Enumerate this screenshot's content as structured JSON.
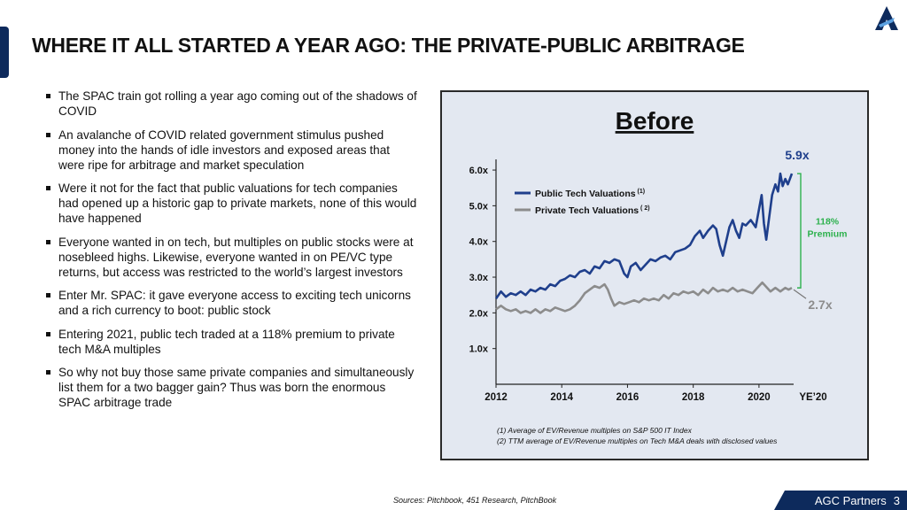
{
  "title": "WHERE IT ALL STARTED A YEAR AGO: THE PRIVATE-PUBLIC ARBITRAGE",
  "bullets": [
    "The SPAC train got rolling a year ago coming out of the shadows of COVID",
    "An avalanche of COVID related government stimulus pushed money into the hands of idle investors and exposed areas that were ripe for arbitrage and market speculation",
    " Were it not for the fact that public valuations for tech companies had opened up a historic gap to private markets, none of this would have happened",
    "Everyone wanted in on tech, but multiples on public stocks were at nosebleed highs. Likewise, everyone wanted in on PE/VC type returns, but access was restricted to the world’s largest investors",
    "Enter Mr. SPAC: it gave everyone access to exciting tech unicorns and a rich currency to boot: public stock",
    "Entering 2021, public tech traded at a 118% premium to private tech M&A multiples",
    "So why not buy those same private companies and simultaneously list them for a two bagger gain? Thus was born the enormous SPAC arbitrage trade"
  ],
  "chart_data": {
    "type": "line",
    "title": "Before",
    "y_tick_labels": [
      "1.0x",
      "2.0x",
      "3.0x",
      "4.0x",
      "5.0x",
      "6.0x"
    ],
    "y_ticks": [
      1,
      2,
      3,
      4,
      5,
      6
    ],
    "x_tick_labels": [
      "2012",
      "2014",
      "2016",
      "2018",
      "2020",
      "YE’20"
    ],
    "x_ticks": [
      2012,
      2014,
      2016,
      2018,
      2020,
      2021
    ],
    "xlim": [
      2012,
      2021
    ],
    "ylim": [
      0,
      6.2
    ],
    "series": [
      {
        "name": "Public Tech Valuations",
        "superscript": "(1)",
        "color": "#1f3f8c",
        "end_label": "5.9x",
        "points": [
          [
            2012.0,
            2.4
          ],
          [
            2012.15,
            2.6
          ],
          [
            2012.3,
            2.45
          ],
          [
            2012.45,
            2.55
          ],
          [
            2012.6,
            2.5
          ],
          [
            2012.75,
            2.6
          ],
          [
            2012.9,
            2.5
          ],
          [
            2013.05,
            2.65
          ],
          [
            2013.2,
            2.6
          ],
          [
            2013.35,
            2.7
          ],
          [
            2013.5,
            2.65
          ],
          [
            2013.65,
            2.8
          ],
          [
            2013.8,
            2.75
          ],
          [
            2013.95,
            2.9
          ],
          [
            2014.1,
            2.95
          ],
          [
            2014.25,
            3.05
          ],
          [
            2014.4,
            3.0
          ],
          [
            2014.55,
            3.15
          ],
          [
            2014.7,
            3.2
          ],
          [
            2014.85,
            3.1
          ],
          [
            2015.0,
            3.3
          ],
          [
            2015.15,
            3.25
          ],
          [
            2015.3,
            3.45
          ],
          [
            2015.45,
            3.4
          ],
          [
            2015.6,
            3.5
          ],
          [
            2015.75,
            3.45
          ],
          [
            2015.9,
            3.1
          ],
          [
            2016.0,
            3.0
          ],
          [
            2016.1,
            3.3
          ],
          [
            2016.25,
            3.4
          ],
          [
            2016.4,
            3.2
          ],
          [
            2016.55,
            3.35
          ],
          [
            2016.7,
            3.5
          ],
          [
            2016.85,
            3.45
          ],
          [
            2017.0,
            3.55
          ],
          [
            2017.15,
            3.6
          ],
          [
            2017.3,
            3.5
          ],
          [
            2017.45,
            3.7
          ],
          [
            2017.6,
            3.75
          ],
          [
            2017.75,
            3.8
          ],
          [
            2017.9,
            3.9
          ],
          [
            2018.05,
            4.15
          ],
          [
            2018.2,
            4.3
          ],
          [
            2018.3,
            4.1
          ],
          [
            2018.45,
            4.3
          ],
          [
            2018.6,
            4.45
          ],
          [
            2018.7,
            4.35
          ],
          [
            2018.8,
            3.9
          ],
          [
            2018.9,
            3.6
          ],
          [
            2019.0,
            4.0
          ],
          [
            2019.1,
            4.4
          ],
          [
            2019.2,
            4.6
          ],
          [
            2019.3,
            4.3
          ],
          [
            2019.4,
            4.1
          ],
          [
            2019.5,
            4.5
          ],
          [
            2019.6,
            4.45
          ],
          [
            2019.75,
            4.6
          ],
          [
            2019.9,
            4.4
          ],
          [
            2020.0,
            4.9
          ],
          [
            2020.08,
            5.3
          ],
          [
            2020.15,
            4.5
          ],
          [
            2020.22,
            4.05
          ],
          [
            2020.3,
            4.6
          ],
          [
            2020.4,
            5.3
          ],
          [
            2020.5,
            5.6
          ],
          [
            2020.58,
            5.4
          ],
          [
            2020.65,
            5.9
          ],
          [
            2020.72,
            5.55
          ],
          [
            2020.8,
            5.75
          ],
          [
            2020.88,
            5.6
          ],
          [
            2021.0,
            5.9
          ]
        ]
      },
      {
        "name": "Private Tech Valuations",
        "superscript": "( 2)",
        "color": "#8c8c8c",
        "end_label": "2.7x",
        "points": [
          [
            2012.0,
            2.1
          ],
          [
            2012.15,
            2.2
          ],
          [
            2012.3,
            2.1
          ],
          [
            2012.45,
            2.05
          ],
          [
            2012.6,
            2.1
          ],
          [
            2012.75,
            2.0
          ],
          [
            2012.9,
            2.05
          ],
          [
            2013.05,
            2.0
          ],
          [
            2013.2,
            2.1
          ],
          [
            2013.35,
            2.0
          ],
          [
            2013.5,
            2.1
          ],
          [
            2013.65,
            2.05
          ],
          [
            2013.8,
            2.15
          ],
          [
            2013.95,
            2.1
          ],
          [
            2014.1,
            2.05
          ],
          [
            2014.25,
            2.1
          ],
          [
            2014.4,
            2.2
          ],
          [
            2014.55,
            2.35
          ],
          [
            2014.7,
            2.55
          ],
          [
            2014.85,
            2.65
          ],
          [
            2015.0,
            2.75
          ],
          [
            2015.15,
            2.7
          ],
          [
            2015.3,
            2.8
          ],
          [
            2015.4,
            2.65
          ],
          [
            2015.5,
            2.4
          ],
          [
            2015.6,
            2.2
          ],
          [
            2015.75,
            2.3
          ],
          [
            2015.9,
            2.25
          ],
          [
            2016.05,
            2.3
          ],
          [
            2016.2,
            2.35
          ],
          [
            2016.35,
            2.3
          ],
          [
            2016.5,
            2.4
          ],
          [
            2016.65,
            2.35
          ],
          [
            2016.8,
            2.4
          ],
          [
            2016.95,
            2.35
          ],
          [
            2017.1,
            2.5
          ],
          [
            2017.25,
            2.4
          ],
          [
            2017.4,
            2.55
          ],
          [
            2017.55,
            2.5
          ],
          [
            2017.7,
            2.6
          ],
          [
            2017.85,
            2.55
          ],
          [
            2018.0,
            2.6
          ],
          [
            2018.15,
            2.5
          ],
          [
            2018.3,
            2.65
          ],
          [
            2018.45,
            2.55
          ],
          [
            2018.6,
            2.7
          ],
          [
            2018.75,
            2.6
          ],
          [
            2018.9,
            2.65
          ],
          [
            2019.05,
            2.6
          ],
          [
            2019.2,
            2.7
          ],
          [
            2019.35,
            2.6
          ],
          [
            2019.5,
            2.65
          ],
          [
            2019.65,
            2.6
          ],
          [
            2019.8,
            2.55
          ],
          [
            2019.95,
            2.7
          ],
          [
            2020.1,
            2.85
          ],
          [
            2020.2,
            2.75
          ],
          [
            2020.35,
            2.6
          ],
          [
            2020.5,
            2.7
          ],
          [
            2020.65,
            2.6
          ],
          [
            2020.8,
            2.7
          ],
          [
            2020.9,
            2.65
          ],
          [
            2021.0,
            2.7
          ]
        ]
      }
    ],
    "annotation": {
      "label_line1": "118%",
      "label_line2": "Premium",
      "color": "#2db14d",
      "from_value": 2.7,
      "to_value": 5.9
    },
    "footnotes": [
      "(1)   Average of EV/Revenue multiples on S&P 500 IT Index",
      "(2)   TTM average of EV/Revenue multiples on Tech M&A deals with disclosed values"
    ]
  },
  "sources": "Sources: Pitchbook, 451 Research, PitchBook",
  "footer": {
    "brand": "AGC Partners",
    "page_number": "3"
  },
  "colors": {
    "navy": "#0d2a5c",
    "chart_bg": "#e3e8f1",
    "green": "#2db14d"
  }
}
